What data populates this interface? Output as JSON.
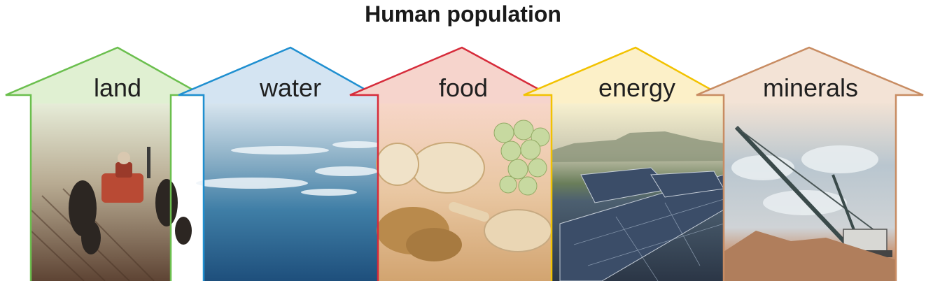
{
  "title": "Human population",
  "arrows": [
    {
      "label": "land",
      "color": "#6bbf4e",
      "tint": "#e0f0d2",
      "scene": "tractor plowing a dusty field"
    },
    {
      "label": "water",
      "color": "#1f8fd0",
      "tint": "#d4e4f2",
      "scene": "ocean waves"
    },
    {
      "label": "food",
      "color": "#d62b3a",
      "tint": "#f6d4cc",
      "scene": "potatoes, grapes, grain and chicken leg"
    },
    {
      "label": "energy",
      "color": "#f2c200",
      "tint": "#fcf0c8",
      "scene": "solar panel array"
    },
    {
      "label": "minerals",
      "color": "#c88c62",
      "tint": "#f3e3d6",
      "scene": "dragline excavator at a mine"
    }
  ]
}
